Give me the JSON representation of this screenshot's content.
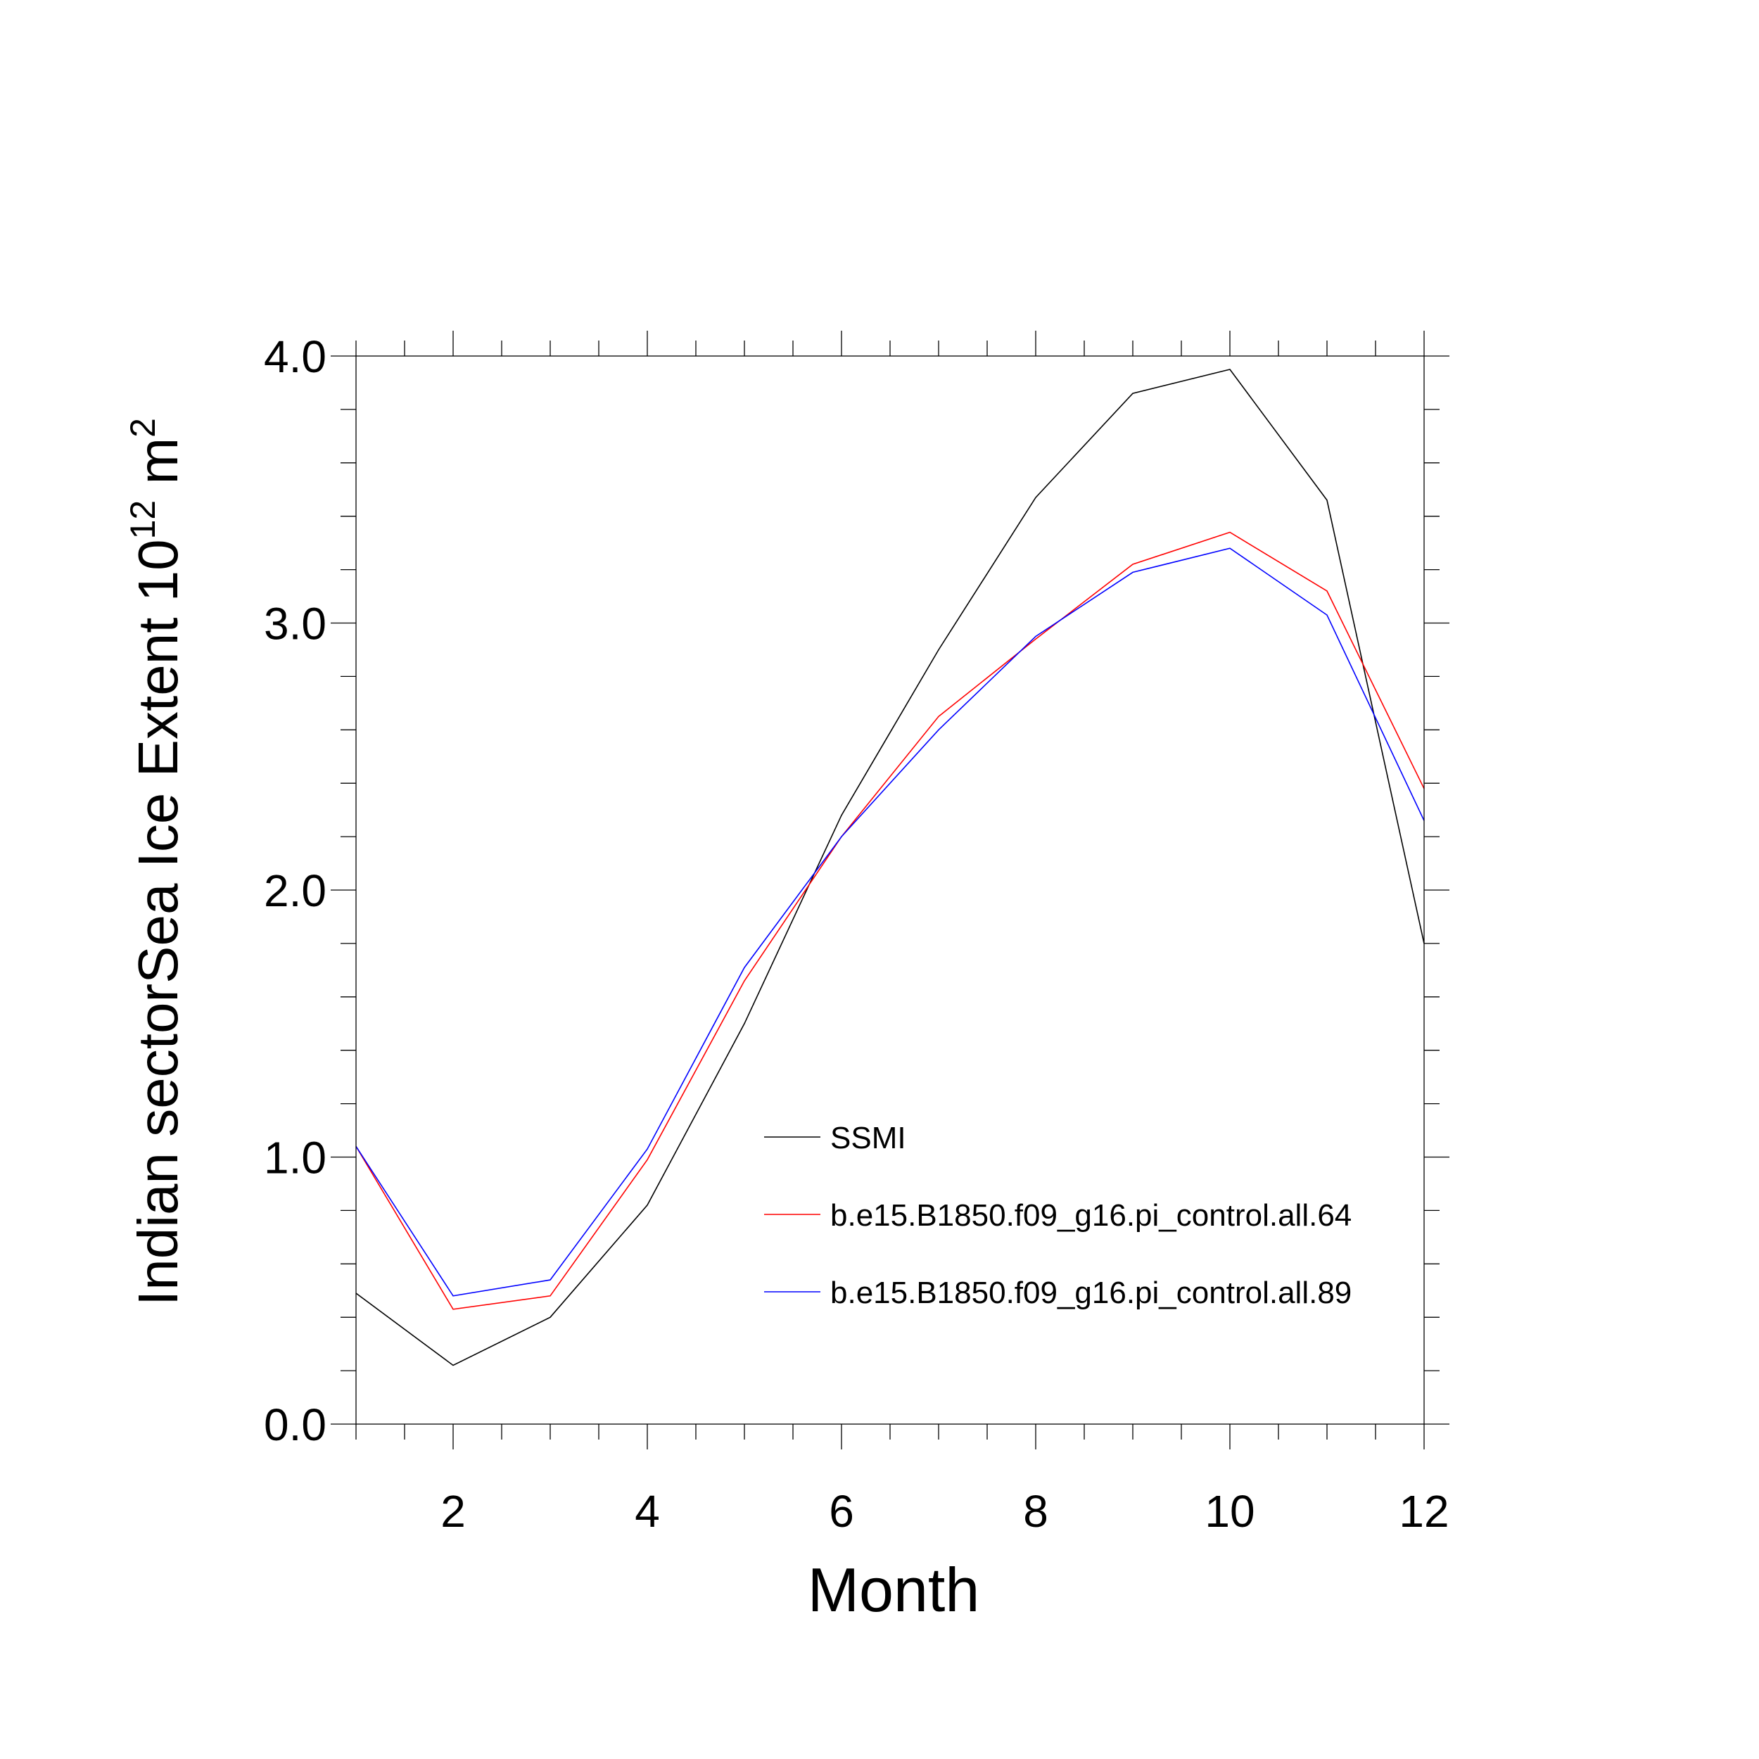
{
  "chart_data": {
    "type": "line",
    "title": "",
    "xlabel": "Month",
    "ylabel": {
      "prefix": "Indian sectorSea Ice Extent 10",
      "exponent": "12",
      "unit": " m",
      "unit_exponent": "2"
    },
    "xlim": [
      1,
      12
    ],
    "ylim": [
      0.0,
      4.0
    ],
    "x_ticks": [
      2,
      4,
      6,
      8,
      10,
      12
    ],
    "x_tick_labels": [
      "2",
      "4",
      "6",
      "8",
      "10",
      "12"
    ],
    "y_ticks": [
      0.0,
      1.0,
      2.0,
      3.0,
      4.0
    ],
    "y_tick_labels": [
      "0.0",
      "1.0",
      "2.0",
      "3.0",
      "4.0"
    ],
    "grid": false,
    "legend_position": "center-right",
    "x": [
      1,
      2,
      3,
      4,
      5,
      6,
      7,
      8,
      9,
      10,
      11,
      12
    ],
    "series": [
      {
        "name": "SSMI",
        "color": "#000000",
        "values": [
          0.49,
          0.22,
          0.4,
          0.82,
          1.5,
          2.28,
          2.9,
          3.47,
          3.86,
          3.95,
          3.46,
          1.8
        ]
      },
      {
        "name": "b.e15.B1850.f09_g16.pi_control.all.64",
        "color": "#ff0000",
        "values": [
          1.04,
          0.43,
          0.48,
          0.99,
          1.66,
          2.2,
          2.65,
          2.94,
          3.22,
          3.34,
          3.12,
          2.38
        ]
      },
      {
        "name": "b.e15.B1850.f09_g16.pi_control.all.89",
        "color": "#0000ff",
        "values": [
          1.04,
          0.48,
          0.54,
          1.03,
          1.71,
          2.2,
          2.6,
          2.95,
          3.19,
          3.28,
          3.03,
          2.26
        ]
      }
    ]
  }
}
